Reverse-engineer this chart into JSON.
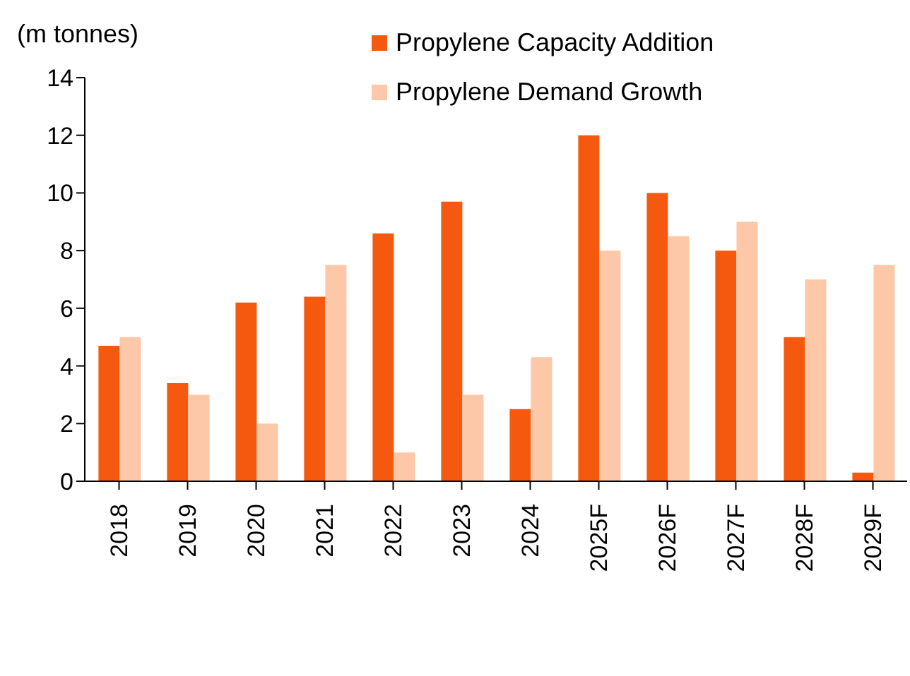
{
  "chart_data": {
    "type": "bar",
    "ylabel": "(m tonnes)",
    "categories": [
      "2018",
      "2019",
      "2020",
      "2021",
      "2022",
      "2023",
      "2024",
      "2025F",
      "2026F",
      "2027F",
      "2028F",
      "2029F"
    ],
    "series": [
      {
        "name": "Propylene Capacity Addition",
        "color": "#f4590f",
        "values": [
          4.7,
          3.4,
          6.2,
          6.4,
          8.6,
          9.7,
          2.5,
          12,
          10,
          8,
          5,
          0.3
        ]
      },
      {
        "name": "Propylene Demand Growth",
        "color": "#fcc8a8",
        "values": [
          5,
          3,
          2,
          7.5,
          1,
          3,
          4.3,
          8,
          8.5,
          9,
          7,
          7.5
        ]
      }
    ],
    "ylim": [
      0,
      14
    ],
    "yticks": [
      0,
      2,
      4,
      6,
      8,
      10,
      12,
      14
    ],
    "grid": false,
    "legend": "top"
  }
}
